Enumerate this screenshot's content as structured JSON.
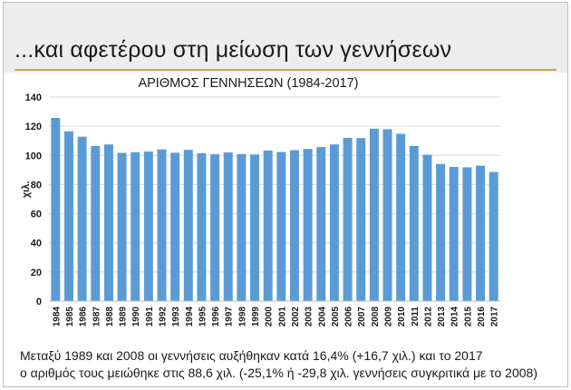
{
  "slide": {
    "title": "...και αφετέρου στη μείωση των γεννήσεων",
    "footer_line1": "Μεταξύ 1989 και 2008 οι γεννήσεις αυξήθηκαν κατά 16,4% (+16,7 χιλ.) και το 2017",
    "footer_line2": "ο αριθμός τους μειώθηκε στις 88,6 χιλ. (-25,1% ή -29,8 χιλ. γεννήσεις συγκριτικά με το 2008)",
    "accent_color": "#c9a64a"
  },
  "chart_data": {
    "type": "bar",
    "title": "ΑΡΙΘΜΟΣ ΓΕΝΝΗΣΕΩΝ (1984-2017)",
    "xlabel": "",
    "ylabel": "χιλ.",
    "ylim": [
      0,
      140
    ],
    "yticks": [
      0,
      20,
      40,
      60,
      80,
      100,
      120,
      140
    ],
    "grid": true,
    "bar_color": "#5b9bd5",
    "categories": [
      "1984",
      "1985",
      "1986",
      "1987",
      "1988",
      "1989",
      "1990",
      "1991",
      "1992",
      "1993",
      "1994",
      "1995",
      "1996",
      "1997",
      "1998",
      "1999",
      "2000",
      "2001",
      "2002",
      "2003",
      "2004",
      "2005",
      "2006",
      "2007",
      "2008",
      "2009",
      "2010",
      "2011",
      "2012",
      "2013",
      "2014",
      "2015",
      "2016",
      "2017"
    ],
    "values": [
      125.7,
      116.5,
      112.8,
      106.4,
      107.5,
      101.7,
      102.2,
      102.6,
      104.1,
      101.8,
      103.8,
      101.5,
      100.7,
      102.0,
      100.9,
      100.6,
      103.3,
      102.3,
      103.6,
      104.4,
      105.7,
      107.5,
      112.0,
      111.9,
      118.3,
      117.9,
      114.8,
      106.4,
      100.4,
      94.1,
      92.1,
      91.8,
      92.9,
      88.6
    ]
  }
}
